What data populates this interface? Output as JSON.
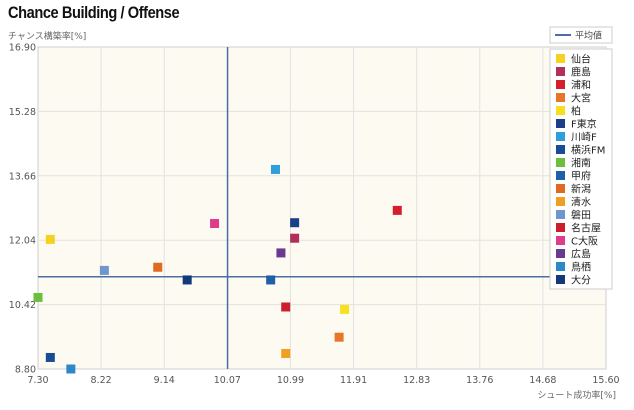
{
  "header": {
    "title": "Chance Building / Offense"
  },
  "chart_data": {
    "type": "scatter",
    "title": "Chance Building / Offense",
    "ylabel": "チャンス構築率[%]",
    "xlabel": "シュート成功率[%]",
    "xlim": [
      7.3,
      15.6
    ],
    "ylim": [
      8.8,
      16.9
    ],
    "x_ticks": [
      "7.30",
      "8.22",
      "9.14",
      "10.07",
      "10.99",
      "11.91",
      "12.83",
      "13.76",
      "14.68",
      "15.60"
    ],
    "y_ticks": [
      "8.80",
      "10.42",
      "12.04",
      "13.66",
      "15.28",
      "16.90"
    ],
    "average": {
      "label": "平均値",
      "x": 10.07,
      "y": 11.12,
      "color": "#4a6fa5"
    },
    "grid": true,
    "legend_position": "top-right",
    "teams": [
      {
        "name": "仙台",
        "color": "#f5d21f",
        "x": 7.48,
        "y": 12.06
      },
      {
        "name": "鹿島",
        "color": "#b0305a",
        "x": 11.05,
        "y": 12.09
      },
      {
        "name": "浦和",
        "color": "#d4202c",
        "x": 12.55,
        "y": 12.79
      },
      {
        "name": "大宮",
        "color": "#e8762a",
        "x": 11.7,
        "y": 9.6
      },
      {
        "name": "柏",
        "color": "#f8e020",
        "x": 11.78,
        "y": 10.3
      },
      {
        "name": "F東京",
        "color": "#1c3f8a",
        "x": 11.05,
        "y": 12.48
      },
      {
        "name": "川崎F",
        "color": "#2e9fda",
        "x": 10.77,
        "y": 13.82
      },
      {
        "name": "横浜FM",
        "color": "#1a4c96",
        "x": 7.48,
        "y": 9.09
      },
      {
        "name": "湘南",
        "color": "#6bbf3a",
        "x": 7.3,
        "y": 10.6
      },
      {
        "name": "甲府",
        "color": "#1f5fa8",
        "x": 10.7,
        "y": 11.04
      },
      {
        "name": "新潟",
        "color": "#e06a22",
        "x": 9.05,
        "y": 11.36
      },
      {
        "name": "清水",
        "color": "#f0a020",
        "x": 10.92,
        "y": 9.19
      },
      {
        "name": "磐田",
        "color": "#7096d0",
        "x": 8.27,
        "y": 11.28
      },
      {
        "name": "名古屋",
        "color": "#cc1f2e",
        "x": 10.92,
        "y": 10.36
      },
      {
        "name": "C大阪",
        "color": "#e03c8c",
        "x": 9.88,
        "y": 12.46
      },
      {
        "name": "広島",
        "color": "#6a3a90",
        "x": 10.85,
        "y": 11.72
      },
      {
        "name": "鳥栖",
        "color": "#2c88c8",
        "x": 7.78,
        "y": 8.8
      },
      {
        "name": "大分",
        "color": "#12397a",
        "x": 9.48,
        "y": 11.04
      }
    ]
  }
}
